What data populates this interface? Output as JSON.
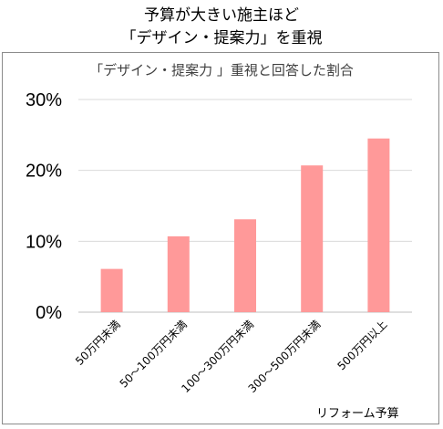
{
  "header": {
    "title_line1": "予算が大きい施主ほど",
    "title_line2": "「デザイン・提案力」を重視"
  },
  "chart_data": {
    "type": "bar",
    "title": "「デザイン・提案力 」重視と回答した割合",
    "xlabel": "リフォーム予算",
    "ylabel": "",
    "categories": [
      "50万円未満",
      "50～100万円未満",
      "100～300万円未満",
      "300～500万円未満",
      "500万円以上"
    ],
    "values": [
      6.1,
      10.7,
      13.1,
      20.7,
      24.5
    ],
    "ylim": [
      0,
      30
    ],
    "yticks": [
      "0%",
      "10%",
      "20%",
      "30%"
    ],
    "grid": true,
    "bar_color": "#ff9999"
  }
}
